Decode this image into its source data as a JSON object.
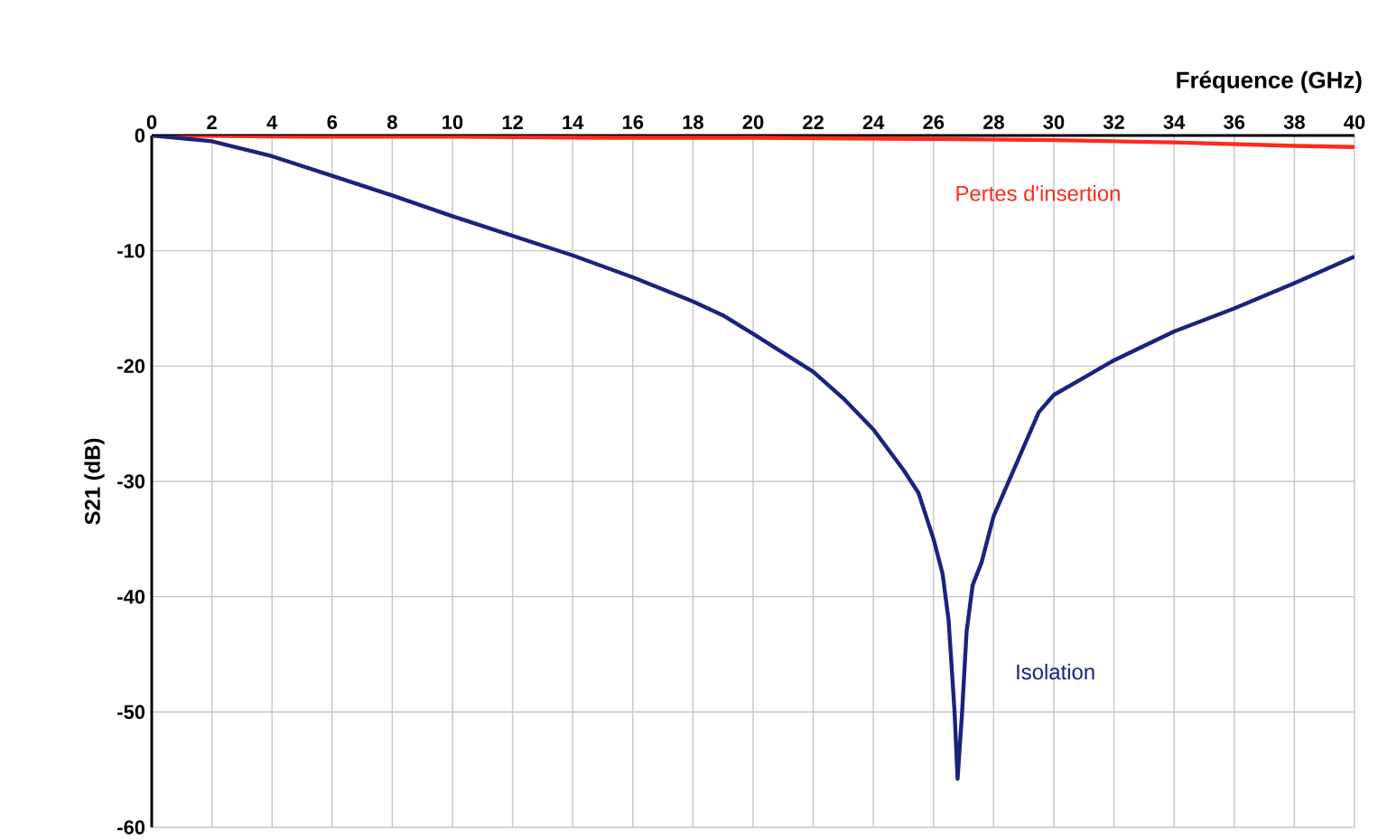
{
  "chart_data": {
    "type": "line",
    "xlabel": "Fréquence (GHz)",
    "ylabel": "S21 (dB)",
    "xlim": [
      0,
      40
    ],
    "xticks": [
      0,
      2,
      4,
      6,
      8,
      10,
      12,
      14,
      16,
      18,
      20,
      22,
      24,
      26,
      28,
      30,
      32,
      34,
      36,
      38,
      40
    ],
    "ylim": [
      -60,
      0
    ],
    "yticks": [
      -60,
      -50,
      -40,
      -30,
      -20,
      -10,
      0
    ],
    "grid": true,
    "marker": "none",
    "line_style": "solid",
    "series": [
      {
        "name": "Pertes d'insertion",
        "color": "#ff2a1a",
        "x": [
          0,
          5,
          10,
          15,
          20,
          26,
          30,
          34,
          38,
          40
        ],
        "values": [
          0,
          -0.1,
          -0.1,
          -0.2,
          -0.2,
          -0.3,
          -0.4,
          -0.6,
          -0.9,
          -1.0
        ]
      },
      {
        "name": "Isolation",
        "color": "#1a237e",
        "x": [
          0,
          2,
          4,
          6,
          8,
          10,
          12,
          14,
          16,
          18,
          19,
          20,
          22,
          23,
          24,
          25,
          25.5,
          26,
          26.3,
          26.5,
          26.7,
          26.8,
          26.95,
          27.1,
          27.3,
          27.6,
          28,
          28.5,
          29,
          29.5,
          30,
          31,
          32,
          34,
          36,
          38,
          40
        ],
        "values": [
          0,
          -0.5,
          -1.8,
          -3.5,
          -5.2,
          -7,
          -8.7,
          -10.4,
          -12.3,
          -14.4,
          -15.6,
          -17.2,
          -20.5,
          -22.8,
          -25.5,
          -29,
          -31,
          -35,
          -38,
          -42,
          -50,
          -55.8,
          -50,
          -43,
          -39,
          -37,
          -33,
          -30,
          -27,
          -24,
          -22.5,
          -21,
          -19.5,
          -17,
          -15,
          -12.8,
          -10.5
        ]
      }
    ]
  }
}
